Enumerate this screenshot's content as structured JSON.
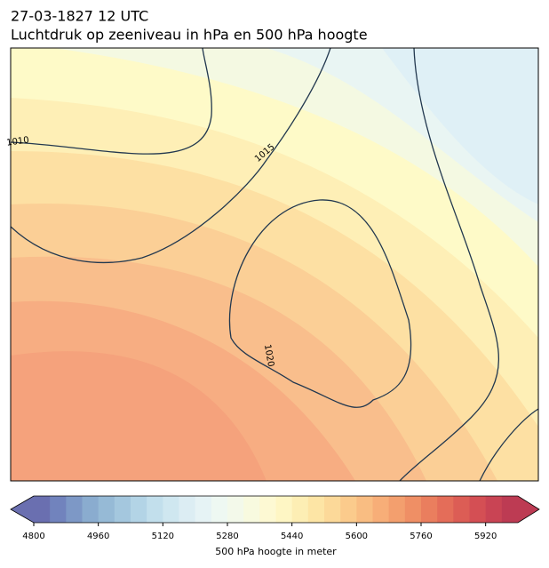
{
  "header": {
    "date": "27-03-1827 12 UTC",
    "title": "Luchtdruk op zeeniveau in hPa en 500 hPa hoogte"
  },
  "map": {
    "isobar_labels": [
      1010,
      1015,
      1020
    ]
  },
  "colorbar": {
    "label": "500 hPa hoogte in meter",
    "lim": [
      4800,
      6000
    ],
    "ticks": [
      4800,
      4960,
      5120,
      5280,
      5440,
      5600,
      5760,
      5920
    ],
    "colors": [
      "#6a6fb0",
      "#7183bd",
      "#7d98c6",
      "#8aaccf",
      "#96bad6",
      "#a4c7de",
      "#b3d4e6",
      "#c2dfec",
      "#cfe7f0",
      "#dcedf3",
      "#e6f3f5",
      "#eef8f2",
      "#f3f9ea",
      "#f8fadf",
      "#fdf9d3",
      "#fef6c4",
      "#fdeeb4",
      "#fde5a5",
      "#fcd999",
      "#fbcb8c",
      "#f9bd82",
      "#f7ae78",
      "#f39f6e",
      "#ef8f65",
      "#ea7e5e",
      "#e46d59",
      "#dc5d55",
      "#d44f54",
      "#c94454",
      "#bd3b53"
    ]
  }
}
